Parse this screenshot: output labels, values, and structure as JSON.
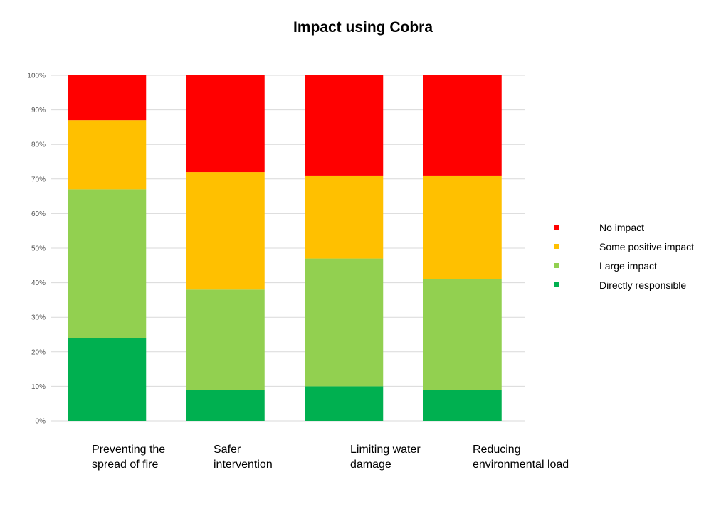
{
  "chart_data": {
    "type": "bar",
    "stacked": true,
    "percent": true,
    "title": "Impact using Cobra",
    "xlabel": "",
    "ylabel": "",
    "categories": [
      [
        "Preventing the",
        "spread of fire"
      ],
      [
        "Safer",
        "intervention"
      ],
      [
        "Limiting water",
        "damage"
      ],
      [
        "Reducing",
        "environmental load"
      ]
    ],
    "yticks": [
      "0%",
      "10%",
      "20%",
      "30%",
      "40%",
      "50%",
      "60%",
      "70%",
      "80%",
      "90%",
      "100%"
    ],
    "ylim": [
      0,
      100
    ],
    "grid": true,
    "legend_position": "right",
    "series": [
      {
        "name": "Directly responsible",
        "color": "#00B050",
        "values": [
          24,
          9,
          10,
          9
        ]
      },
      {
        "name": "Large impact",
        "color": "#92D050",
        "values": [
          43,
          29,
          37,
          32
        ]
      },
      {
        "name": "Some positive impact",
        "color": "#FFC000",
        "values": [
          20,
          34,
          24,
          30
        ]
      },
      {
        "name": "No impact",
        "color": "#FF0000",
        "values": [
          13,
          28,
          29,
          29
        ]
      }
    ],
    "legend_order": [
      "No impact",
      "Some positive impact",
      "Large impact",
      "Directly responsible"
    ]
  }
}
